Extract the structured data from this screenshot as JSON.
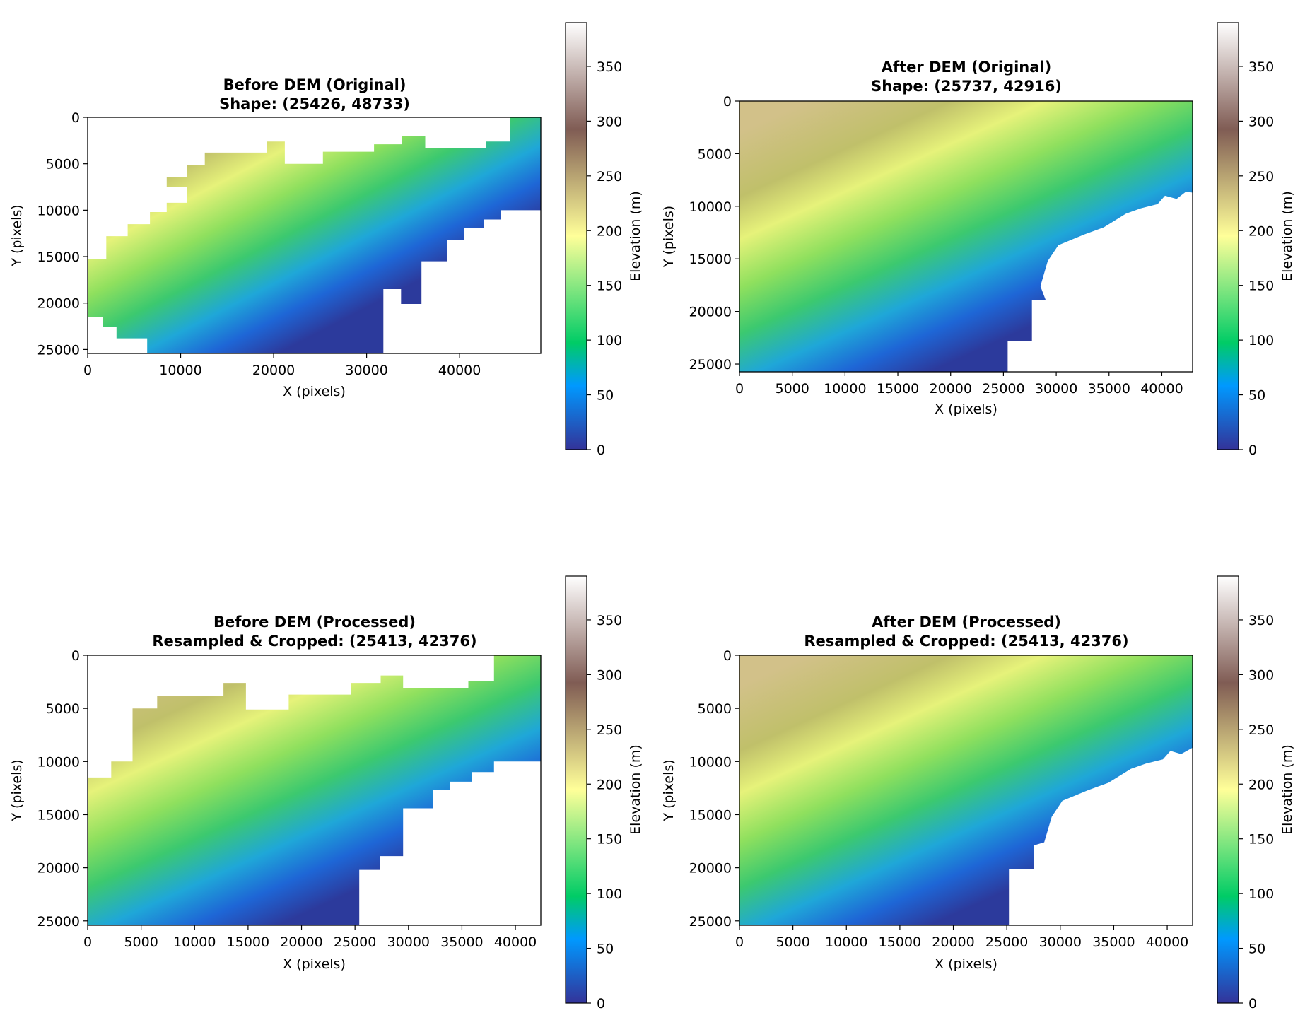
{
  "figure": {
    "colormap": "terrain",
    "nodata_color": "#ffffff"
  },
  "chart_data": [
    {
      "id": "before-original",
      "type": "heatmap",
      "title_line1": "Before DEM (Original)",
      "title_line2": "Shape: (25426, 48733)",
      "shape": [
        25426,
        48733
      ],
      "xlabel": "X (pixels)",
      "ylabel": "Y (pixels)",
      "xlim": [
        0,
        48733
      ],
      "ylim": [
        25426,
        0
      ],
      "xticks": [
        0,
        10000,
        20000,
        30000,
        40000
      ],
      "yticks": [
        0,
        5000,
        10000,
        15000,
        20000,
        25000
      ],
      "colorbar": {
        "label": "Elevation (m)",
        "range": [
          0,
          390
        ],
        "ticks": [
          0,
          50,
          100,
          150,
          200,
          250,
          300,
          350
        ]
      },
      "coverage": {
        "top": [
          [
            0,
            15300
          ],
          [
            2000,
            15300
          ],
          [
            2000,
            12800
          ],
          [
            4300,
            12800
          ],
          [
            4300,
            11500
          ],
          [
            6700,
            11500
          ],
          [
            6700,
            10200
          ],
          [
            8500,
            10200
          ],
          [
            8500,
            9200
          ],
          [
            10700,
            9200
          ],
          [
            10700,
            7500
          ],
          [
            8500,
            7500
          ],
          [
            8500,
            6400
          ],
          [
            10700,
            6400
          ],
          [
            10700,
            5100
          ],
          [
            12600,
            5100
          ],
          [
            12600,
            3800
          ],
          [
            19300,
            3800
          ],
          [
            19300,
            2600
          ],
          [
            21200,
            2600
          ],
          [
            21200,
            5000
          ],
          [
            25300,
            5000
          ],
          [
            25300,
            3700
          ],
          [
            30800,
            3700
          ],
          [
            30800,
            2900
          ],
          [
            33800,
            2900
          ],
          [
            33800,
            2000
          ],
          [
            36300,
            2000
          ],
          [
            36300,
            3300
          ],
          [
            42800,
            3300
          ],
          [
            42800,
            2600
          ],
          [
            45400,
            2600
          ],
          [
            45400,
            0
          ],
          [
            48733,
            0
          ]
        ],
        "bottom": [
          [
            0,
            21500
          ],
          [
            1600,
            21500
          ],
          [
            1600,
            22600
          ],
          [
            3100,
            22600
          ],
          [
            3100,
            23800
          ],
          [
            6400,
            23800
          ],
          [
            6400,
            25426
          ],
          [
            31800,
            25426
          ],
          [
            31800,
            18500
          ],
          [
            33700,
            18500
          ],
          [
            33700,
            20100
          ],
          [
            35900,
            20100
          ],
          [
            35900,
            15500
          ],
          [
            38700,
            15500
          ],
          [
            38700,
            13200
          ],
          [
            40500,
            13200
          ],
          [
            40500,
            11900
          ],
          [
            42600,
            11900
          ],
          [
            42600,
            11000
          ],
          [
            44400,
            11000
          ],
          [
            44400,
            10000
          ],
          [
            48733,
            10000
          ]
        ]
      }
    },
    {
      "id": "after-original",
      "type": "heatmap",
      "title_line1": "After DEM (Original)",
      "title_line2": "Shape: (25737, 42916)",
      "shape": [
        25737,
        42916
      ],
      "xlabel": "X (pixels)",
      "ylabel": "Y (pixels)",
      "xlim": [
        0,
        42916
      ],
      "ylim": [
        25737,
        0
      ],
      "xticks": [
        0,
        5000,
        10000,
        15000,
        20000,
        25000,
        30000,
        35000,
        40000
      ],
      "yticks": [
        0,
        5000,
        10000,
        15000,
        20000,
        25000
      ],
      "colorbar": {
        "label": "Elevation (m)",
        "range": [
          0,
          390
        ],
        "ticks": [
          0,
          50,
          100,
          150,
          200,
          250,
          300,
          350
        ]
      },
      "coverage": {
        "top": [
          [
            0,
            0
          ],
          [
            42916,
            0
          ]
        ],
        "bottom": [
          [
            0,
            25737
          ],
          [
            25400,
            25737
          ],
          [
            25400,
            22800
          ],
          [
            27700,
            22800
          ],
          [
            27700,
            18900
          ],
          [
            29000,
            18900
          ],
          [
            28500,
            17600
          ],
          [
            29200,
            15200
          ],
          [
            30200,
            13700
          ],
          [
            32600,
            12700
          ],
          [
            34500,
            12000
          ],
          [
            36600,
            10700
          ],
          [
            38000,
            10200
          ],
          [
            39600,
            9800
          ],
          [
            40300,
            9000
          ],
          [
            41400,
            9300
          ],
          [
            42300,
            8600
          ],
          [
            42916,
            8700
          ]
        ]
      }
    },
    {
      "id": "before-processed",
      "type": "heatmap",
      "title_line1": "Before DEM (Processed)",
      "title_line2": "Resampled & Cropped: (25413, 42376)",
      "shape": [
        25413,
        42376
      ],
      "xlabel": "X (pixels)",
      "ylabel": "Y (pixels)",
      "xlim": [
        0,
        42376
      ],
      "ylim": [
        25413,
        0
      ],
      "xticks": [
        0,
        5000,
        10000,
        15000,
        20000,
        25000,
        30000,
        35000,
        40000
      ],
      "yticks": [
        0,
        5000,
        10000,
        15000,
        20000,
        25000
      ],
      "colorbar": {
        "label": "Elevation (m)",
        "range": [
          0,
          390
        ],
        "ticks": [
          0,
          50,
          100,
          150,
          200,
          250,
          300,
          350
        ]
      },
      "coverage": {
        "top": [
          [
            0,
            11500
          ],
          [
            2200,
            11500
          ],
          [
            2200,
            10000
          ],
          [
            4200,
            10000
          ],
          [
            4200,
            8700
          ],
          [
            4200,
            5000
          ],
          [
            6500,
            5000
          ],
          [
            6500,
            3800
          ],
          [
            12700,
            3800
          ],
          [
            12700,
            2600
          ],
          [
            14800,
            2600
          ],
          [
            14800,
            5100
          ],
          [
            18800,
            5100
          ],
          [
            18800,
            3700
          ],
          [
            24600,
            3700
          ],
          [
            24600,
            2600
          ],
          [
            27400,
            2600
          ],
          [
            27400,
            1900
          ],
          [
            29500,
            1900
          ],
          [
            29500,
            3100
          ],
          [
            35600,
            3100
          ],
          [
            35600,
            2400
          ],
          [
            38000,
            2400
          ],
          [
            38000,
            0
          ],
          [
            42376,
            0
          ]
        ],
        "bottom": [
          [
            0,
            25413
          ],
          [
            25400,
            25413
          ],
          [
            25400,
            20200
          ],
          [
            27300,
            20200
          ],
          [
            27300,
            18900
          ],
          [
            29500,
            18900
          ],
          [
            29500,
            14400
          ],
          [
            32300,
            14400
          ],
          [
            32300,
            12700
          ],
          [
            33900,
            12700
          ],
          [
            33900,
            11900
          ],
          [
            35900,
            11900
          ],
          [
            35900,
            11000
          ],
          [
            38000,
            11000
          ],
          [
            38000,
            10000
          ],
          [
            42376,
            10000
          ]
        ]
      }
    },
    {
      "id": "after-processed",
      "type": "heatmap",
      "title_line1": "After DEM (Processed)",
      "title_line2": "Resampled & Cropped: (25413, 42376)",
      "shape": [
        25413,
        42376
      ],
      "xlabel": "X (pixels)",
      "ylabel": "Y (pixels)",
      "xlim": [
        0,
        42376
      ],
      "ylim": [
        25413,
        0
      ],
      "xticks": [
        0,
        5000,
        10000,
        15000,
        20000,
        25000,
        30000,
        35000,
        40000
      ],
      "yticks": [
        0,
        5000,
        10000,
        15000,
        20000,
        25000
      ],
      "colorbar": {
        "label": "Elevation (m)",
        "range": [
          0,
          390
        ],
        "ticks": [
          0,
          50,
          100,
          150,
          200,
          250,
          300,
          350
        ]
      },
      "coverage": {
        "top": [
          [
            0,
            0
          ],
          [
            42376,
            0
          ]
        ],
        "bottom": [
          [
            0,
            25413
          ],
          [
            25200,
            25413
          ],
          [
            25200,
            20100
          ],
          [
            27500,
            20100
          ],
          [
            27500,
            17900
          ],
          [
            28500,
            17600
          ],
          [
            29200,
            15200
          ],
          [
            30200,
            13700
          ],
          [
            32600,
            12700
          ],
          [
            34500,
            12000
          ],
          [
            36600,
            10700
          ],
          [
            38000,
            10200
          ],
          [
            39600,
            9800
          ],
          [
            40300,
            9000
          ],
          [
            41300,
            9300
          ],
          [
            42376,
            8700
          ]
        ]
      }
    }
  ]
}
